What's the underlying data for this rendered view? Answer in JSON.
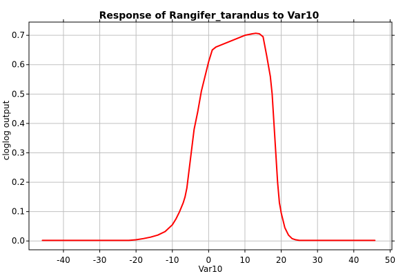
{
  "chart_data": {
    "type": "line",
    "title": "Response of Rangifer_tarandus to Var10",
    "xlabel": "Var10",
    "ylabel": "cloglog output",
    "xlim": [
      -49.5,
      50.5
    ],
    "ylim": [
      -0.03,
      0.745
    ],
    "x_ticks": [
      -40,
      -30,
      -20,
      -10,
      0,
      10,
      20,
      30,
      40,
      50
    ],
    "y_ticks": [
      0.0,
      0.1,
      0.2,
      0.3,
      0.4,
      0.5,
      0.6,
      0.7
    ],
    "x_tick_labels": [
      "-40",
      "-30",
      "-20",
      "-10",
      "0",
      "10",
      "20",
      "30",
      "40",
      "50"
    ],
    "y_tick_labels": [
      "0.0",
      "0.1",
      "0.2",
      "0.3",
      "0.4",
      "0.5",
      "0.6",
      "0.7"
    ],
    "grid": true,
    "legend": "none",
    "series": [
      {
        "color": "#ff0000",
        "x": [
          -45.8,
          -30,
          -22,
          -20,
          -18,
          -16,
          -14,
          -12,
          -10,
          -9,
          -8,
          -7,
          -6.5,
          -6,
          -5,
          -4,
          -3,
          -2,
          -1,
          0,
          0.5,
          1,
          1.5,
          2,
          4,
          6,
          8,
          10,
          12,
          13,
          14,
          15,
          16,
          17,
          17.5,
          18,
          18.5,
          19,
          19.5,
          19.8,
          20,
          20.5,
          21,
          22,
          23,
          24,
          25,
          26,
          30,
          40,
          45.8
        ],
        "y": [
          0.002,
          0.002,
          0.002,
          0.004,
          0.008,
          0.013,
          0.02,
          0.032,
          0.055,
          0.075,
          0.1,
          0.13,
          0.15,
          0.18,
          0.28,
          0.38,
          0.44,
          0.51,
          0.56,
          0.61,
          0.63,
          0.65,
          0.655,
          0.66,
          0.67,
          0.68,
          0.69,
          0.7,
          0.705,
          0.707,
          0.705,
          0.695,
          0.63,
          0.56,
          0.5,
          0.4,
          0.3,
          0.2,
          0.13,
          0.11,
          0.095,
          0.07,
          0.045,
          0.02,
          0.008,
          0.004,
          0.002,
          0.002,
          0.002,
          0.002,
          0.002
        ]
      }
    ]
  }
}
